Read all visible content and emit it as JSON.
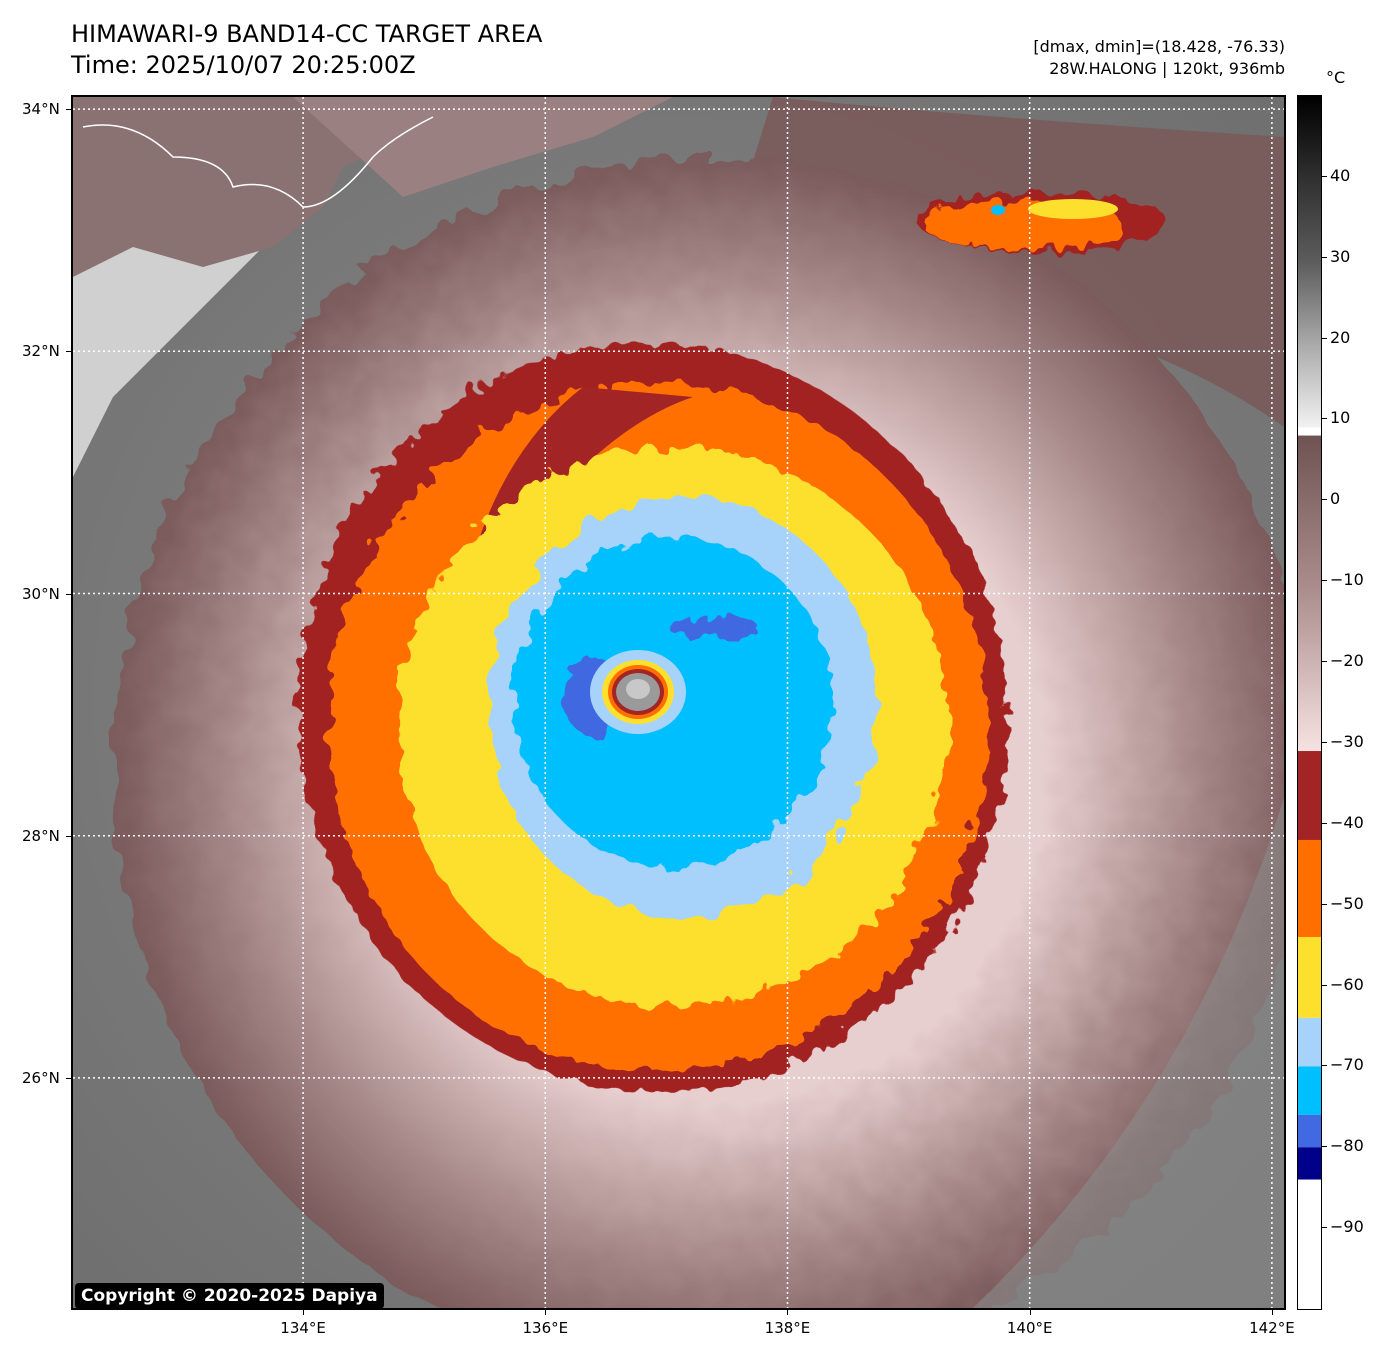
{
  "header": {
    "title": "HIMAWARI-9 BAND14-CC TARGET AREA",
    "time": "Time: 2025/10/07 20:25:00Z",
    "dmax_dmin": "[dmax, dmin]=(18.428, -76.33)",
    "storm": "28W.HALONG | 120kt, 936mb"
  },
  "copyright": "Copyright © 2020-2025 Dapiya",
  "map": {
    "lon_range": [
      132.1,
      142.1
    ],
    "lat_range": [
      24.1,
      34.1
    ],
    "storm_center": {
      "lon": 136.75,
      "lat": 29.2
    },
    "lat_ticks": [
      {
        "value": 34,
        "label": "34°N"
      },
      {
        "value": 32,
        "label": "32°N"
      },
      {
        "value": 30,
        "label": "30°N"
      },
      {
        "value": 28,
        "label": "28°N"
      },
      {
        "value": 26,
        "label": "26°N"
      }
    ],
    "lon_ticks": [
      {
        "value": 134,
        "label": "134°E"
      },
      {
        "value": 136,
        "label": "136°E"
      },
      {
        "value": 138,
        "label": "138°E"
      },
      {
        "value": 140,
        "label": "140°E"
      },
      {
        "value": 142,
        "label": "142°E"
      }
    ],
    "gridlines": "dotted white"
  },
  "colorbar": {
    "unit": "°C",
    "range": [
      -100,
      50
    ],
    "ticks": [
      {
        "value": 40,
        "label": "40"
      },
      {
        "value": 30,
        "label": "30"
      },
      {
        "value": 20,
        "label": "20"
      },
      {
        "value": 10,
        "label": "10"
      },
      {
        "value": 0,
        "label": "0"
      },
      {
        "value": -10,
        "label": "−10"
      },
      {
        "value": -20,
        "label": "−20"
      },
      {
        "value": -30,
        "label": "−30"
      },
      {
        "value": -40,
        "label": "−40"
      },
      {
        "value": -50,
        "label": "−50"
      },
      {
        "value": -60,
        "label": "−60"
      },
      {
        "value": -70,
        "label": "−70"
      },
      {
        "value": -80,
        "label": "−80"
      },
      {
        "value": -90,
        "label": "−90"
      }
    ],
    "segments": [
      {
        "from": 50,
        "to": 40,
        "color": "#000000"
      },
      {
        "from": 40,
        "to": 30,
        "color": "#1e1e1e"
      },
      {
        "from": 30,
        "to": 20,
        "color": "#6a6a6a"
      },
      {
        "from": 20,
        "to": 9,
        "color": "#cfcfcf"
      },
      {
        "from": 9,
        "to": 8,
        "color": "#ffffff"
      },
      {
        "from": 8,
        "to": -10,
        "color": "#8f6f6f"
      },
      {
        "from": -10,
        "to": -31,
        "color": "#f1dada"
      },
      {
        "from": -31,
        "to": -42,
        "color": "#a22424"
      },
      {
        "from": -42,
        "to": -54,
        "color": "#ff6f00"
      },
      {
        "from": -54,
        "to": -64,
        "color": "#fde02e"
      },
      {
        "from": -64,
        "to": -70,
        "color": "#a7d3fb"
      },
      {
        "from": -70,
        "to": -76,
        "color": "#00bfff"
      },
      {
        "from": -76,
        "to": -80,
        "color": "#4169e1"
      },
      {
        "from": -80,
        "to": -84,
        "color": "#00008b"
      },
      {
        "from": -84,
        "to": -100,
        "color": "#ffffff"
      }
    ],
    "gradient_segments": [
      {
        "from": 50,
        "to": 9,
        "gradient": true
      },
      {
        "from": 8,
        "to": -31,
        "gradient": true
      }
    ]
  },
  "palette": {
    "dark_red": "#a22424",
    "orange": "#ff6f00",
    "yellow": "#fde02e",
    "light_blue": "#a7d3fb",
    "cyan": "#00bfff",
    "royal_blue": "#4169e1",
    "land_background": "#8a8a8a",
    "mauve": "#7a5a5a"
  }
}
